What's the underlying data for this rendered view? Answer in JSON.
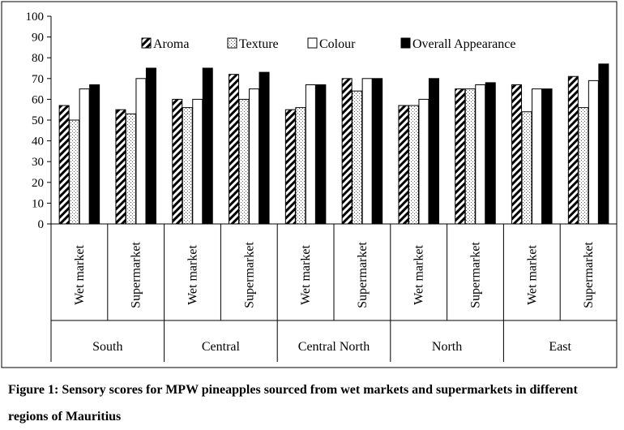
{
  "chart_data": {
    "type": "bar",
    "title": "",
    "xlabel": "",
    "ylabel": "",
    "ylim": [
      0,
      100
    ],
    "yticks": [
      0,
      10,
      20,
      30,
      40,
      50,
      60,
      70,
      80,
      90,
      100
    ],
    "grid": false,
    "legend_position": "top",
    "regions": [
      "South",
      "Central",
      "Central North",
      "North",
      "East"
    ],
    "outlets": [
      "Wet market",
      "Supermarket"
    ],
    "categories": [
      "South - Wet market",
      "South - Supermarket",
      "Central - Wet market",
      "Central - Supermarket",
      "Central North - Wet market",
      "Central North - Supermarket",
      "North - Wet market",
      "North - Supermarket",
      "East - Wet market",
      "East - Supermarket"
    ],
    "series": [
      {
        "name": "Aroma",
        "pattern": "diagonal-hatch",
        "values": [
          57,
          55,
          60,
          72,
          55,
          70,
          57,
          65,
          67,
          71
        ]
      },
      {
        "name": "Texture",
        "pattern": "dots",
        "values": [
          50,
          53,
          56,
          60,
          56,
          64,
          57,
          65,
          54,
          56
        ]
      },
      {
        "name": "Colour",
        "pattern": "white",
        "values": [
          65,
          70,
          60,
          65,
          67,
          70,
          60,
          67,
          65,
          69
        ]
      },
      {
        "name": "Overall Appearance",
        "pattern": "black",
        "values": [
          67,
          75,
          75,
          73,
          67,
          70,
          70,
          68,
          65,
          77
        ]
      }
    ]
  },
  "caption": "Figure 1: Sensory scores for MPW pineapples sourced from wet markets and supermarkets in different regions of Mauritius"
}
